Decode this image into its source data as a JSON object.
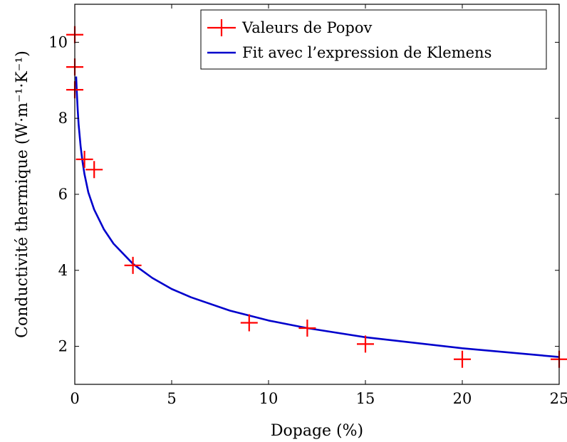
{
  "chart_data": {
    "type": "scatter",
    "xlabel": "Dopage (%)",
    "ylabel": "Conductivité thermique (W·m⁻¹·K⁻¹)",
    "xlim": [
      0,
      25
    ],
    "ylim": [
      1,
      11
    ],
    "xticks": [
      0,
      5,
      10,
      15,
      20,
      25
    ],
    "yticks": [
      2,
      4,
      6,
      8,
      10
    ],
    "grid": false,
    "legend_position": "top-right",
    "series": [
      {
        "name": "Valeurs de Popov",
        "kind": "scatter",
        "marker": "plus",
        "color": "#ff0000",
        "x": [
          0,
          0,
          0,
          0.5,
          1,
          3,
          9,
          12,
          15,
          20,
          25
        ],
        "y": [
          10.2,
          9.35,
          8.75,
          6.92,
          6.65,
          4.13,
          2.62,
          2.48,
          2.06,
          1.66,
          1.66
        ]
      },
      {
        "name": "Fit avec l’expression de Klemens",
        "kind": "line",
        "color": "#0000cc",
        "x": [
          0.07,
          0.1,
          0.15,
          0.2,
          0.3,
          0.4,
          0.5,
          0.7,
          1,
          1.5,
          2,
          3,
          4,
          5,
          6,
          8,
          10,
          12,
          15,
          20,
          25
        ],
        "y": [
          9.1,
          8.74,
          8.22,
          7.83,
          7.26,
          6.85,
          6.53,
          6.05,
          5.6,
          5.08,
          4.7,
          4.17,
          3.8,
          3.51,
          3.29,
          2.94,
          2.68,
          2.48,
          2.24,
          1.95,
          1.72
        ]
      }
    ]
  }
}
